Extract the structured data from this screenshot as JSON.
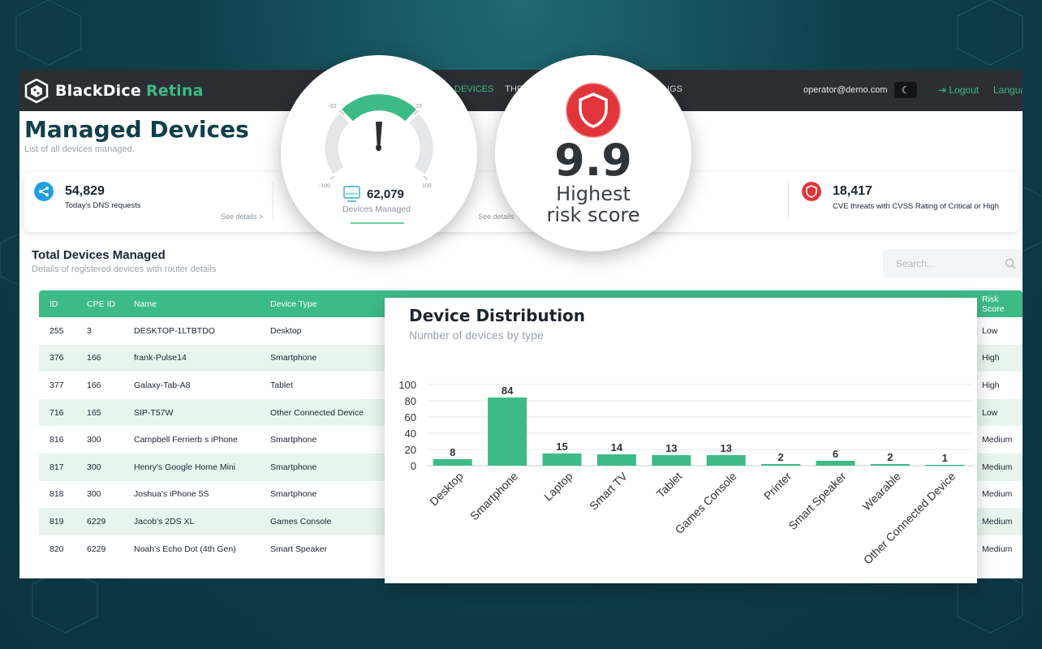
{
  "app": {
    "brand": "BlackDice",
    "brand_accent": "Retina",
    "nav_active": "DEVICES",
    "nav_partial_left": "THR",
    "nav_partial_right": "INGS",
    "user_email": "operator@demo.com",
    "logout_label": "Logout",
    "language_label": "Langua"
  },
  "page": {
    "title": "Managed Devices",
    "subtitle": "List of all devices managed."
  },
  "stats": {
    "dns_value": "54,829",
    "dns_label": "Today's DNS requests",
    "dns_details": "See details >",
    "middle_details": "See details",
    "cve_value": "18,417",
    "cve_label": "CVE threats with CVSS Rating of Critical or High"
  },
  "gauge": {
    "tick_top_left": "-33",
    "tick_top_right": "33",
    "tick_bottom_left": "-100",
    "tick_bottom_right": "100",
    "value": "62,079",
    "label": "Devices Managed"
  },
  "risk": {
    "value": "9.9",
    "label_line1": "Highest",
    "label_line2": "risk score"
  },
  "table_section": {
    "title": "Total Devices Managed",
    "subtitle": "Details of registered devices with router details",
    "search_placeholder": "Search...",
    "headers": {
      "id": "ID",
      "cpe": "CPE ID",
      "name": "Name",
      "type": "Device Type",
      "risk": "Risk Score"
    },
    "rows": [
      {
        "id": "255",
        "cpe": "3",
        "name": "DESKTOP-1LTBTDO",
        "type": "Desktop",
        "risk": "Low"
      },
      {
        "id": "376",
        "cpe": "166",
        "name": "frank-Pulse14",
        "type": "Smartphone",
        "risk": "High"
      },
      {
        "id": "377",
        "cpe": "166",
        "name": "Galaxy-Tab-A8",
        "type": "Tablet",
        "risk": "High"
      },
      {
        "id": "716",
        "cpe": "165",
        "name": "SIP-T57W",
        "type": "Other Connected Device",
        "risk": "Low"
      },
      {
        "id": "816",
        "cpe": "300",
        "name": "Campbell Ferrierb   s iPhone",
        "type": "Smartphone",
        "risk": "Medium"
      },
      {
        "id": "817",
        "cpe": "300",
        "name": "Henry's Google Home Mini",
        "type": "Smartphone",
        "risk": "Medium"
      },
      {
        "id": "818",
        "cpe": "300",
        "name": "Joshua's iPhone 5S",
        "type": "Smartphone",
        "risk": "Medium"
      },
      {
        "id": "819",
        "cpe": "6229",
        "name": "Jacob's 2DS XL",
        "type": "Games Console",
        "risk": "Medium"
      },
      {
        "id": "820",
        "cpe": "6229",
        "name": "Noah's Echo Dot (4th Gen)",
        "type": "Smart Speaker",
        "risk": "Medium"
      }
    ]
  },
  "colors": {
    "accent": "#3dbb86",
    "dark": "#0f3f49",
    "topbar": "#2b2f33",
    "risk_red": "#e2353b"
  },
  "chart_data": {
    "type": "bar",
    "title": "Device Distribution",
    "subtitle": "Number of devices by type",
    "categories": [
      "Desktop",
      "Smartphone",
      "Laptop",
      "Smart TV",
      "Tablet",
      "Games Console",
      "Printer",
      "Smart Speaker",
      "Wearable",
      "Other Connected Device"
    ],
    "values": [
      8,
      84,
      15,
      14,
      13,
      13,
      2,
      6,
      2,
      1
    ],
    "yticks": [
      0,
      20,
      40,
      60,
      80,
      100
    ],
    "ylim": [
      0,
      100
    ],
    "grid": true,
    "bar_color": "#3dbb86"
  }
}
